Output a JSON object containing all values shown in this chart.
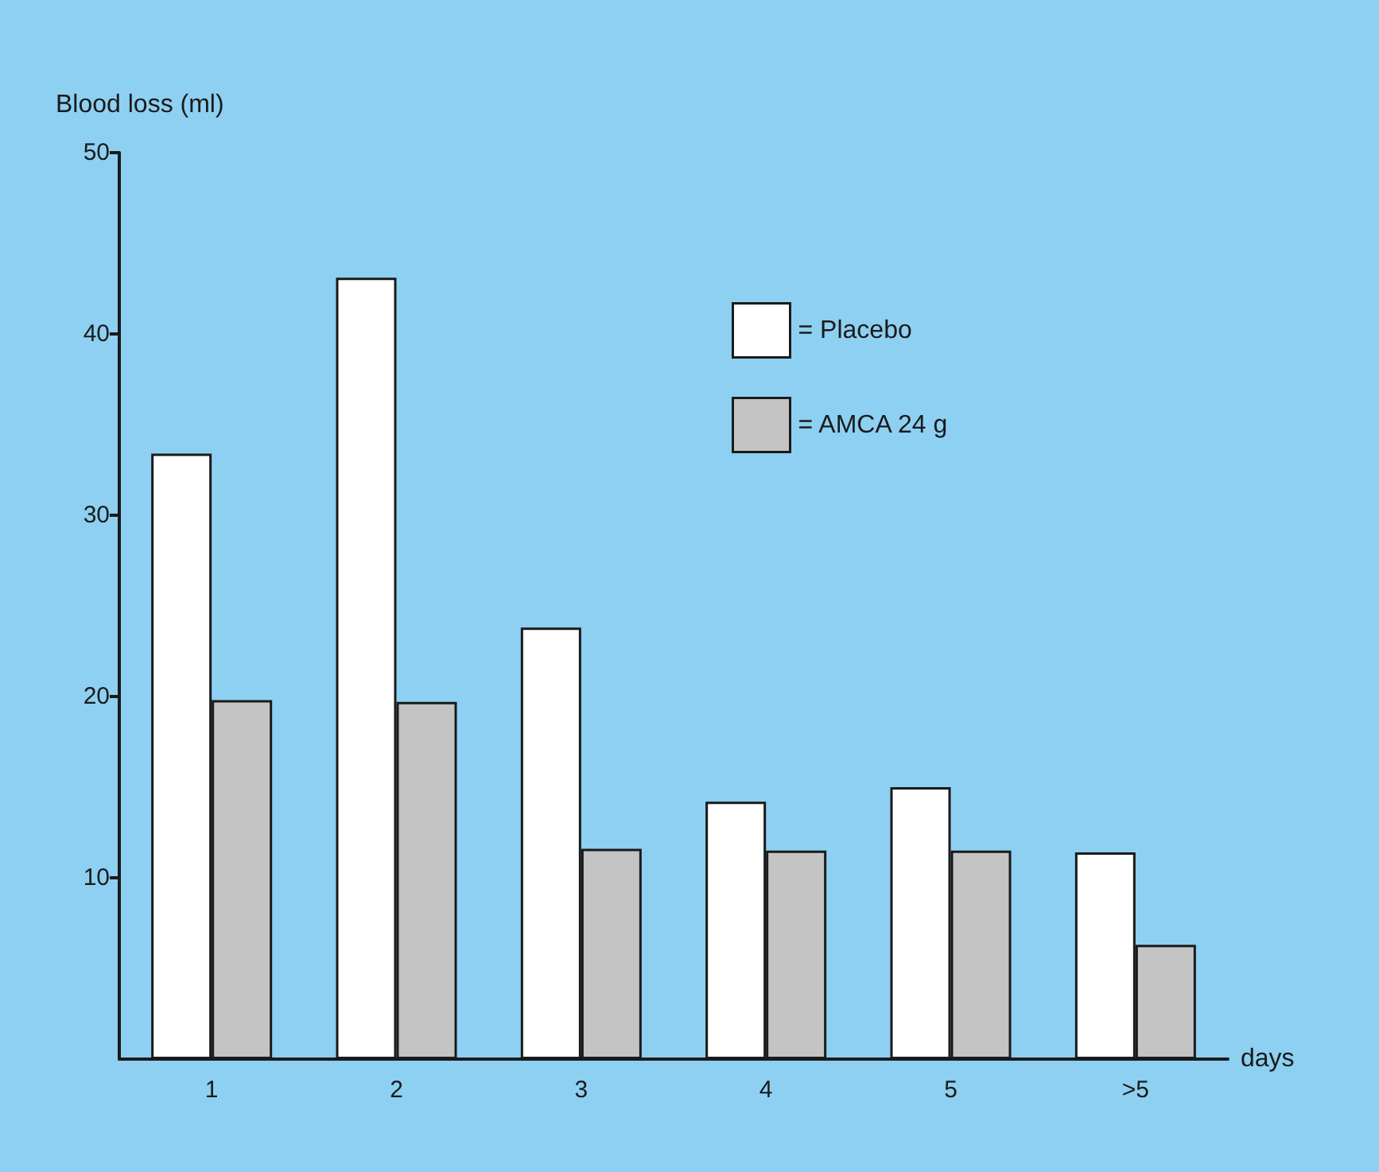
{
  "chart_data": {
    "type": "bar",
    "ylabel": "Blood loss (ml)",
    "xlabel": "days",
    "categories": [
      "1",
      "2",
      "3",
      "4",
      "5",
      ">5"
    ],
    "series": [
      {
        "name": "= Placebo",
        "color": "#ffffff",
        "values": [
          33.4,
          43.1,
          23.8,
          14.2,
          15.0,
          11.4
        ]
      },
      {
        "name": "= AMCA 24 g",
        "color": "#c4c4c4",
        "values": [
          19.8,
          19.7,
          11.6,
          11.5,
          11.5,
          6.3
        ]
      }
    ],
    "ylim": [
      0,
      50
    ],
    "yticks": [
      10,
      20,
      30,
      40,
      50
    ],
    "grid": false,
    "legend": "top right"
  }
}
